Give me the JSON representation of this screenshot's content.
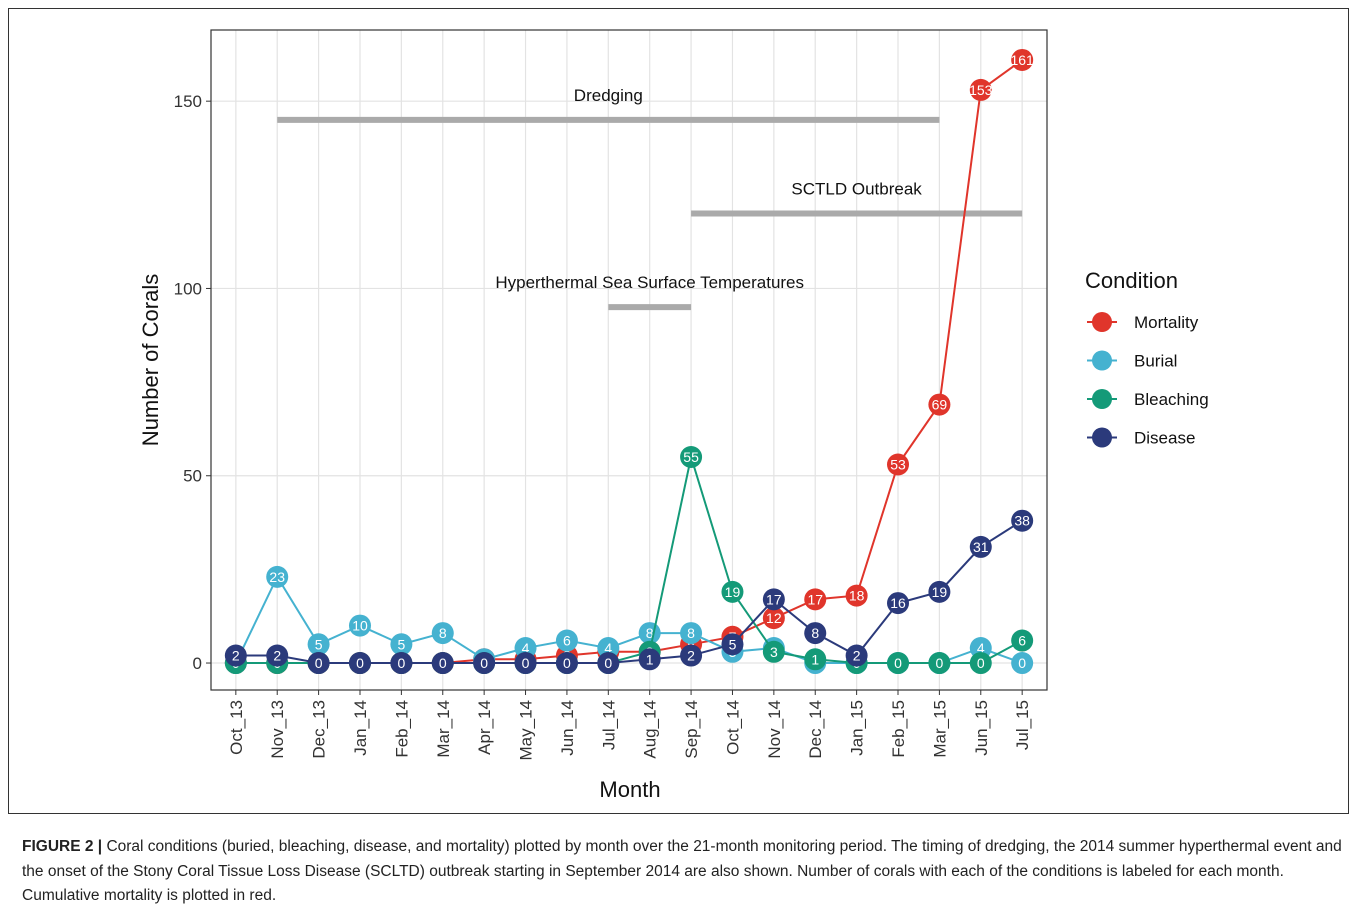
{
  "chart_data": {
    "type": "line",
    "x_label": "Month",
    "y_label": "Number of Corals",
    "categories": [
      "Oct_13",
      "Nov_13",
      "Dec_13",
      "Jan_14",
      "Feb_14",
      "Mar_14",
      "Apr_14",
      "May_14",
      "Jun_14",
      "Jul_14",
      "Aug_14",
      "Sep_14",
      "Oct_14",
      "Nov_14",
      "Dec_14",
      "Jan_15",
      "Feb_15",
      "Mar_15",
      "Jun_15",
      "Jul_15"
    ],
    "series": [
      {
        "name": "Mortality",
        "color": "#e0352b",
        "values": [
          0,
          0,
          0,
          0,
          0,
          0,
          1,
          1,
          2,
          3,
          3,
          5,
          7,
          12,
          17,
          18,
          53,
          69,
          153,
          161
        ]
      },
      {
        "name": "Burial",
        "color": "#45b2d0",
        "values": [
          0,
          23,
          5,
          10,
          5,
          8,
          1,
          4,
          6,
          4,
          8,
          8,
          3,
          4,
          0,
          0,
          0,
          0,
          4,
          0
        ]
      },
      {
        "name": "Bleaching",
        "color": "#149a78",
        "values": [
          0,
          0,
          0,
          0,
          0,
          0,
          0,
          0,
          0,
          0,
          3,
          55,
          19,
          3,
          1,
          0,
          0,
          0,
          0,
          6
        ]
      },
      {
        "name": "Disease",
        "color": "#2b3a7b",
        "values": [
          2,
          2,
          0,
          0,
          0,
          0,
          0,
          0,
          0,
          0,
          1,
          2,
          5,
          17,
          8,
          2,
          16,
          19,
          31,
          38
        ]
      }
    ],
    "legend_title": "Condition",
    "annotations": [
      {
        "text": "Dredging",
        "start": "Nov_13",
        "end": "Mar_15",
        "y": 145
      },
      {
        "text": "SCTLD Outbreak",
        "start": "Sep_14",
        "end": "Jul_15",
        "y": 120
      },
      {
        "text": "Hyperthermal Sea Surface Temperatures",
        "start": "Jul_14",
        "end": "Sep_14",
        "y": 95
      }
    ],
    "ylim": [
      -7.2,
      169
    ],
    "yticks": [
      0,
      50,
      100,
      150
    ],
    "grid": true
  },
  "caption": {
    "label": "FIGURE 2 |",
    "text": "Coral conditions (buried, bleaching, disease, and mortality) plotted by month over the 21-month monitoring period. The timing of dredging, the 2014 summer hyperthermal event and the onset of the Stony Coral Tissue Loss Disease (SCLTD) outbreak starting in September 2014 are also shown. Number of corals with each of the conditions is labeled for each month. Cumulative mortality is plotted in red."
  }
}
